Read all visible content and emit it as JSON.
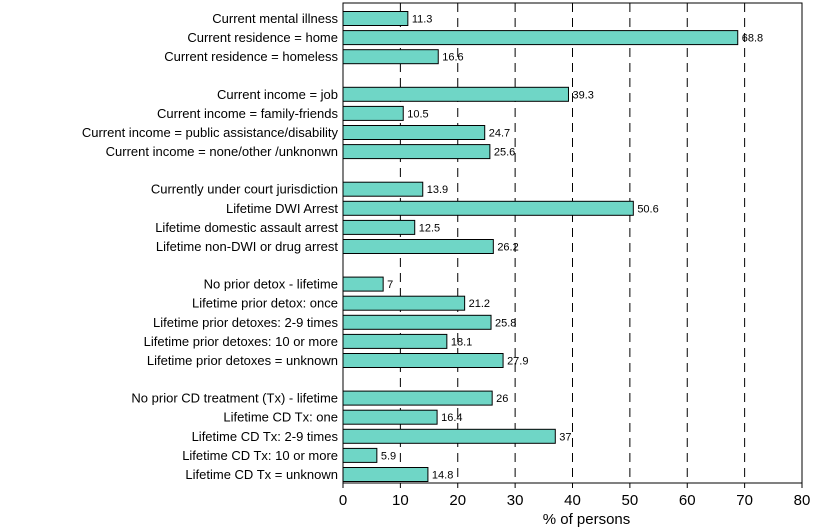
{
  "chart_data": {
    "type": "bar",
    "orientation": "horizontal",
    "xlabel": "% of persons",
    "xlim": [
      0,
      80
    ],
    "xticks": [
      0,
      10,
      20,
      30,
      40,
      50,
      60,
      70,
      80
    ],
    "grid": "vertical dashed",
    "bar_color": "#6fd6c6",
    "groups": [
      {
        "categories": [
          "Current mental illness",
          "Current residence = home",
          "Current residence = homeless"
        ],
        "values": [
          11.3,
          68.8,
          16.6
        ],
        "value_labels": [
          "11.3",
          "68.8",
          "16.6"
        ]
      },
      {
        "categories": [
          "Current income = job",
          "Current income = family-friends",
          "Current income = public assistance/disability",
          "Current income = none/other /unknonwn"
        ],
        "values": [
          39.3,
          10.5,
          24.7,
          25.6
        ],
        "value_labels": [
          "39.3",
          "10.5",
          "24.7",
          "25.6"
        ]
      },
      {
        "categories": [
          "Currently under court jurisdiction",
          "Lifetime DWI Arrest",
          "Lifetime domestic assault arrest",
          "Lifetime non-DWI or drug arrest"
        ],
        "values": [
          13.9,
          50.6,
          12.5,
          26.2
        ],
        "value_labels": [
          "13.9",
          "50.6",
          "12.5",
          "26.2"
        ]
      },
      {
        "categories": [
          "No prior detox - lifetime",
          "Lifetime prior detox: once",
          "Lifetime prior detoxes: 2-9 times",
          "Lifetime prior detoxes: 10 or more",
          "Lifetime prior detoxes = unknown"
        ],
        "values": [
          7,
          21.2,
          25.8,
          18.1,
          27.9
        ],
        "value_labels": [
          "7",
          "21.2",
          "25.8",
          "18.1",
          "27.9"
        ]
      },
      {
        "categories": [
          "No prior CD treatment (Tx) -  lifetime",
          "Lifetime CD Tx: one",
          "Lifetime CD Tx: 2-9 times",
          "Lifetime CD Tx: 10 or more",
          "Lifetime CD Tx = unknown"
        ],
        "values": [
          26,
          16.4,
          37,
          5.9,
          14.8
        ],
        "value_labels": [
          "26",
          "16.4",
          "37",
          "5.9",
          "14.8"
        ]
      }
    ]
  }
}
